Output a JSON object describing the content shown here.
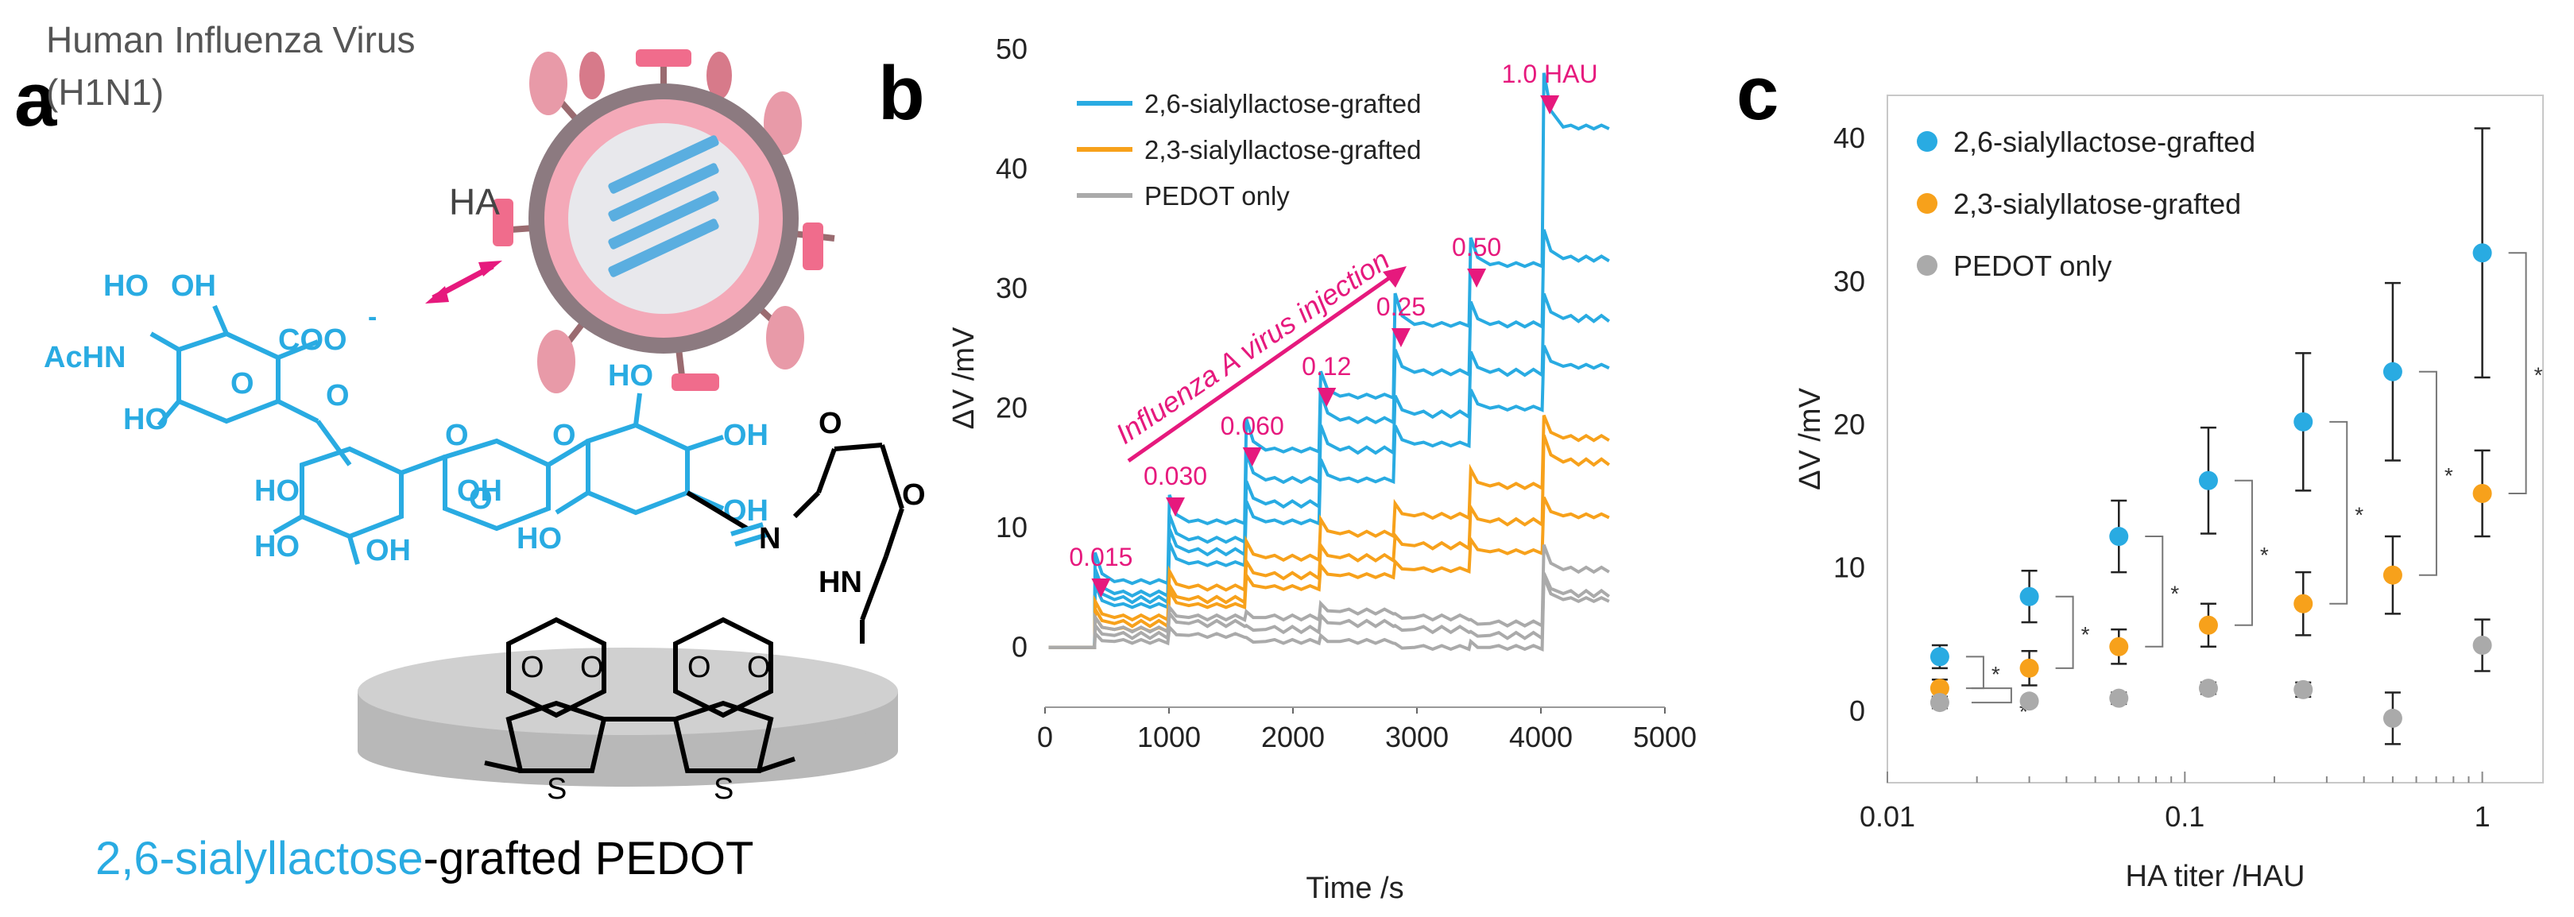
{
  "panel_a": {
    "letter": "a",
    "virus_title_line1": "Human Influenza Virus",
    "virus_title_line2": "(H1N1)",
    "ha_label": "HA",
    "caption_colored": "2,6-sialyllactose",
    "caption_rest": "-grafted PEDOT",
    "chem": {
      "ho": "HO",
      "oh": "OH",
      "coo": "COO",
      "charge": "-",
      "achn": "AcHN",
      "o": "O",
      "s": "S",
      "n": "N",
      "hn": "HN"
    }
  },
  "colors": {
    "blue": "#29ABE2",
    "orange": "#F7A11B",
    "gray": "#AAAAAA",
    "magenta": "#E6197D",
    "pink": "#F06C8C"
  },
  "chart_data": [
    {
      "panel": "b",
      "type": "line",
      "letter": "b",
      "xlabel": "Time /s",
      "ylabel": "ΔV /mV",
      "xlim": [
        0,
        5000
      ],
      "ylim": [
        -5,
        50
      ],
      "xticks": [
        0,
        1000,
        2000,
        3000,
        4000,
        5000
      ],
      "yticks": [
        0,
        10,
        20,
        30,
        40,
        50
      ],
      "legend": [
        "2,6-sialyllactose-grafted",
        "2,3-sialyllactose-grafted",
        "PEDOT only"
      ],
      "legend_position": "top-left",
      "injection_times": [
        400,
        1000,
        1620,
        2220,
        2820,
        3430,
        4020
      ],
      "injection_labels": [
        "0.015",
        "0.030",
        "0.060",
        "0.12",
        "0.25",
        "0.50",
        "1.0 HAU"
      ],
      "annotation": "Influenza A virus injection",
      "series": [
        {
          "name": "2,6-sialyllactose-grafted",
          "levels": [
            0,
            5.5,
            10.5,
            16.5,
            21,
            27,
            32,
            43.5
          ]
        },
        {
          "name": "2,6-sialyllactose-grafted",
          "levels": [
            0,
            4.5,
            9,
            14,
            19,
            23,
            27,
            32.5
          ]
        },
        {
          "name": "2,6-sialyllactose-grafted",
          "levels": [
            0,
            4,
            8,
            12,
            16.5,
            19.5,
            23,
            27.5
          ]
        },
        {
          "name": "2,6-sialyllactose-grafted",
          "levels": [
            0,
            3.5,
            7,
            10.5,
            14,
            17,
            20,
            23.5
          ]
        },
        {
          "name": "2,3-sialyllactose-grafted",
          "levels": [
            0,
            2.5,
            5,
            7.5,
            9.5,
            11,
            13.5,
            17.5
          ]
        },
        {
          "name": "2,3-sialyllactose-grafted",
          "levels": [
            0,
            2,
            4,
            6,
            7.5,
            8.5,
            10.5,
            15.5
          ]
        },
        {
          "name": "2,3-sialyllactose-grafted",
          "levels": [
            0,
            1.5,
            3.5,
            5,
            6,
            6.5,
            8,
            11
          ]
        },
        {
          "name": "PEDOT only",
          "levels": [
            0,
            1.5,
            2.5,
            2.5,
            3,
            2.5,
            2,
            6.5
          ]
        },
        {
          "name": "PEDOT only",
          "levels": [
            0,
            1,
            2,
            1.5,
            2,
            1.5,
            1,
            4.5
          ]
        },
        {
          "name": "PEDOT only",
          "levels": [
            0,
            0.5,
            1,
            0.5,
            0.5,
            0,
            0,
            4
          ]
        }
      ]
    },
    {
      "panel": "c",
      "type": "scatter",
      "letter": "c",
      "xlabel": "HA titer /HAU",
      "ylabel": "ΔV /mV",
      "xscale": "log",
      "xlim": [
        0.01,
        1.6
      ],
      "ylim": [
        -5,
        43
      ],
      "xticks": [
        0.01,
        0.1,
        1
      ],
      "xtick_labels": [
        "0.01",
        "0.1",
        "1"
      ],
      "yticks": [
        0,
        10,
        20,
        30,
        40
      ],
      "legend": [
        "2,6-sialyllactose-grafted",
        "2,3-sialyllatose-grafted",
        "PEDOT only"
      ],
      "legend_position": "top-left",
      "x": [
        0.015,
        0.03,
        0.06,
        0.12,
        0.25,
        0.5,
        1.0
      ],
      "significance_marker": "*",
      "series": [
        {
          "name": "2,6-sialyllactose-grafted",
          "values": [
            3.8,
            8.0,
            12.2,
            16.1,
            20.2,
            23.7,
            32.0
          ],
          "errors": [
            0.8,
            1.8,
            2.5,
            3.7,
            4.8,
            6.2,
            8.7
          ]
        },
        {
          "name": "2,3-sialyllatose-grafted",
          "values": [
            1.6,
            3.0,
            4.5,
            6.0,
            7.5,
            9.5,
            15.2
          ],
          "errors": [
            0.6,
            1.2,
            1.2,
            1.5,
            2.2,
            2.7,
            3.0
          ]
        },
        {
          "name": "PEDOT only",
          "values": [
            0.6,
            0.7,
            0.9,
            1.6,
            1.5,
            -0.5,
            4.6
          ],
          "errors": [
            0.4,
            0.3,
            0.4,
            0.4,
            0.5,
            1.8,
            1.8
          ]
        }
      ]
    }
  ]
}
